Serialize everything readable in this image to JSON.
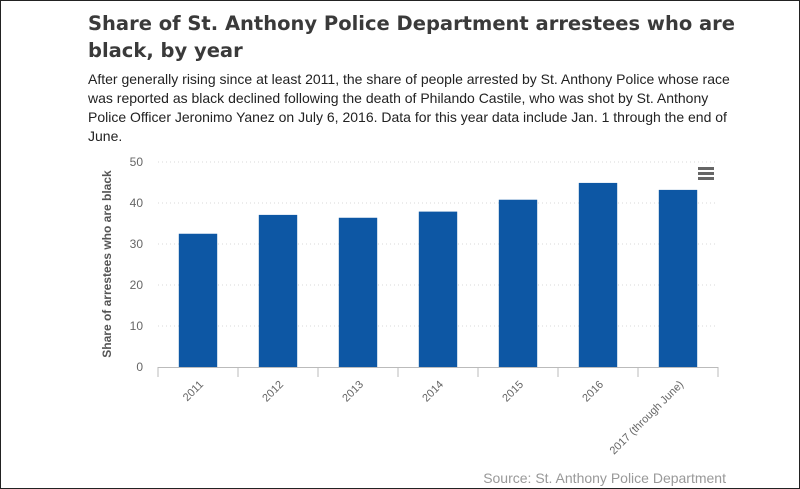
{
  "header": {
    "title": "Share of St. Anthony Police Department arrestees who are black, by year",
    "subtitle": "After generally rising since at least 2011, the share of people arrested by St. Anthony Police whose race was reported as black declined following the death of Philando Castile, who was shot by St. Anthony Police Officer Jeronimo Yanez on July 6, 2016. Data for this year data include Jan. 1 through the end of June."
  },
  "footer": {
    "source": "Source: St. Anthony Police Department"
  },
  "menu": {
    "icon": "hamburger-menu-icon"
  },
  "colors": {
    "bar": "#0d57a4",
    "grid": "#d8d8d8",
    "axis_text": "#666666"
  },
  "chart_data": {
    "type": "bar",
    "categories": [
      "2011",
      "2012",
      "2013",
      "2014",
      "2015",
      "2016",
      "2017 (through June)"
    ],
    "values": [
      32.5,
      37.1,
      36.4,
      37.9,
      40.8,
      44.9,
      43.2
    ],
    "ylabel": "Share of arrestees who are black",
    "xlabel": "",
    "ylim": [
      0,
      50
    ],
    "yticks": [
      0,
      10,
      20,
      30,
      40,
      50
    ],
    "grid": true,
    "legend": "none"
  }
}
